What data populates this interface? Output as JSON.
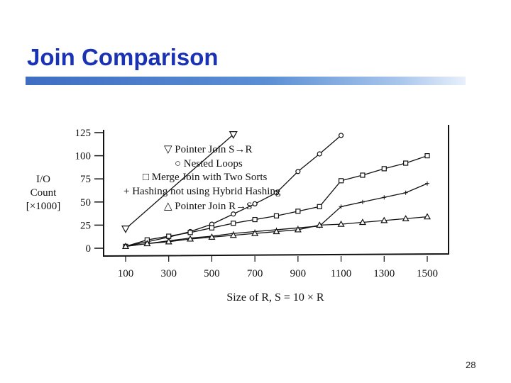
{
  "slide": {
    "title": "Join Comparison",
    "page_number": "28"
  },
  "colors": {
    "title": "#1a33b5",
    "title_bar": "#3e6dc2",
    "ink": "#111111"
  },
  "chart_data": {
    "type": "line",
    "xlabel": "Size of R, S = 10 × R",
    "ylabel_lines": [
      "I/O",
      "Count",
      "[×1000]"
    ],
    "xlim": [
      100,
      1500
    ],
    "ylim": [
      0,
      125
    ],
    "x_ticks": [
      100,
      300,
      500,
      700,
      900,
      1100,
      1300,
      1500
    ],
    "y_ticks": [
      0,
      25,
      50,
      75,
      100,
      125
    ],
    "grid": false,
    "legend_position": "upper-middle",
    "series": [
      {
        "name": "Pointer Join S→R",
        "marker": "▽",
        "x": [
          100,
          600
        ],
        "y": [
          21,
          123
        ]
      },
      {
        "name": "Nested Loops",
        "marker": "○",
        "x": [
          100,
          200,
          300,
          400,
          500,
          600,
          700,
          800,
          900,
          1000,
          1100
        ],
        "y": [
          2,
          7,
          12,
          18,
          26,
          37,
          48,
          60,
          83,
          102,
          122
        ]
      },
      {
        "name": "Merge Join with Two Sorts",
        "marker": "□",
        "x": [
          100,
          200,
          300,
          400,
          500,
          600,
          700,
          800,
          900,
          1000,
          1100,
          1200,
          1300,
          1400,
          1500
        ],
        "y": [
          2,
          9,
          13,
          17,
          22,
          27,
          31,
          35,
          40,
          45,
          73,
          79,
          86,
          92,
          100
        ]
      },
      {
        "name": "Hashing not using Hybrid Hashing",
        "marker": "+",
        "x": [
          100,
          200,
          300,
          400,
          500,
          600,
          700,
          800,
          900,
          1000,
          1100,
          1200,
          1300,
          1400,
          1500
        ],
        "y": [
          2,
          5,
          8,
          11,
          13,
          16,
          18,
          20,
          22,
          24,
          45,
          50,
          55,
          60,
          70
        ]
      },
      {
        "name": "Pointer Join R→S",
        "marker": "△",
        "x": [
          100,
          200,
          300,
          400,
          500,
          600,
          700,
          800,
          900,
          1000,
          1100,
          1200,
          1300,
          1400,
          1500
        ],
        "y": [
          2,
          5,
          7,
          10,
          12,
          14,
          16,
          18,
          20,
          25,
          26,
          28,
          30,
          32,
          34
        ]
      }
    ]
  }
}
